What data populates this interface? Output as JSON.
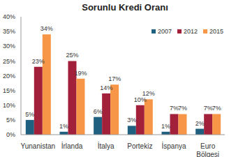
{
  "chart_data": {
    "type": "bar",
    "title": "Sorunlu Kredi Oranı",
    "categories": [
      "Yunanistan",
      "İrlanda",
      "İtalya",
      "Portekiz",
      "İspanya",
      "Euro Bölgesi"
    ],
    "series": [
      {
        "name": "2007",
        "color": "#1f5f7f",
        "values": [
          5,
          1,
          6,
          3,
          1,
          2
        ],
        "value_labels": [
          "5%",
          "1%",
          "6%",
          "3%",
          "1%",
          "2%"
        ]
      },
      {
        "name": "2012",
        "color": "#a3203a",
        "values": [
          23,
          25,
          14,
          10,
          7,
          7
        ],
        "value_labels": [
          "23%",
          "25%",
          "14%",
          "10%",
          "7%",
          "7%"
        ]
      },
      {
        "name": "2015",
        "color": "#f79646",
        "values": [
          34,
          19,
          17,
          12,
          7,
          7
        ],
        "value_labels": [
          "34%",
          "19%",
          "17%",
          "12%",
          "7%",
          "7%"
        ]
      }
    ],
    "ylim": [
      0,
      40
    ],
    "yticks": [
      {
        "value": 0,
        "label": "0%"
      },
      {
        "value": 5,
        "label": "5%"
      },
      {
        "value": 10,
        "label": "10%"
      },
      {
        "value": 15,
        "label": "15%"
      },
      {
        "value": 20,
        "label": "20%"
      },
      {
        "value": 25,
        "label": "25%"
      },
      {
        "value": 30,
        "label": "30%"
      },
      {
        "value": 35,
        "label": "35%"
      },
      {
        "value": 40,
        "label": "40%"
      }
    ],
    "grid": false,
    "legend": "top-right",
    "data_labels": true
  }
}
